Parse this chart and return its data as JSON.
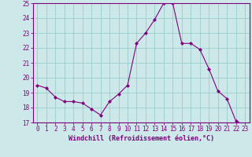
{
  "hours": [
    0,
    1,
    2,
    3,
    4,
    5,
    6,
    7,
    8,
    9,
    10,
    11,
    12,
    13,
    14,
    15,
    16,
    17,
    18,
    19,
    20,
    21,
    22,
    23
  ],
  "values": [
    19.5,
    19.3,
    18.7,
    18.4,
    18.4,
    18.3,
    17.9,
    17.5,
    18.4,
    18.9,
    19.5,
    22.3,
    23.0,
    23.9,
    25.0,
    25.0,
    22.3,
    22.3,
    21.9,
    20.6,
    19.1,
    18.6,
    17.1,
    16.8
  ],
  "line_color": "#800080",
  "marker_color": "#800080",
  "bg_color": "#cce8e8",
  "grid_color": "#99cccc",
  "xlabel": "Windchill (Refroidissement éolien,°C)",
  "xlabel_color": "#800080",
  "ylim": [
    17,
    25
  ],
  "yticks": [
    17,
    18,
    19,
    20,
    21,
    22,
    23,
    24,
    25
  ],
  "tick_label_color": "#800080",
  "spine_color": "#800080",
  "tick_label_fontsize": 5.5,
  "xlabel_fontsize": 6.0
}
